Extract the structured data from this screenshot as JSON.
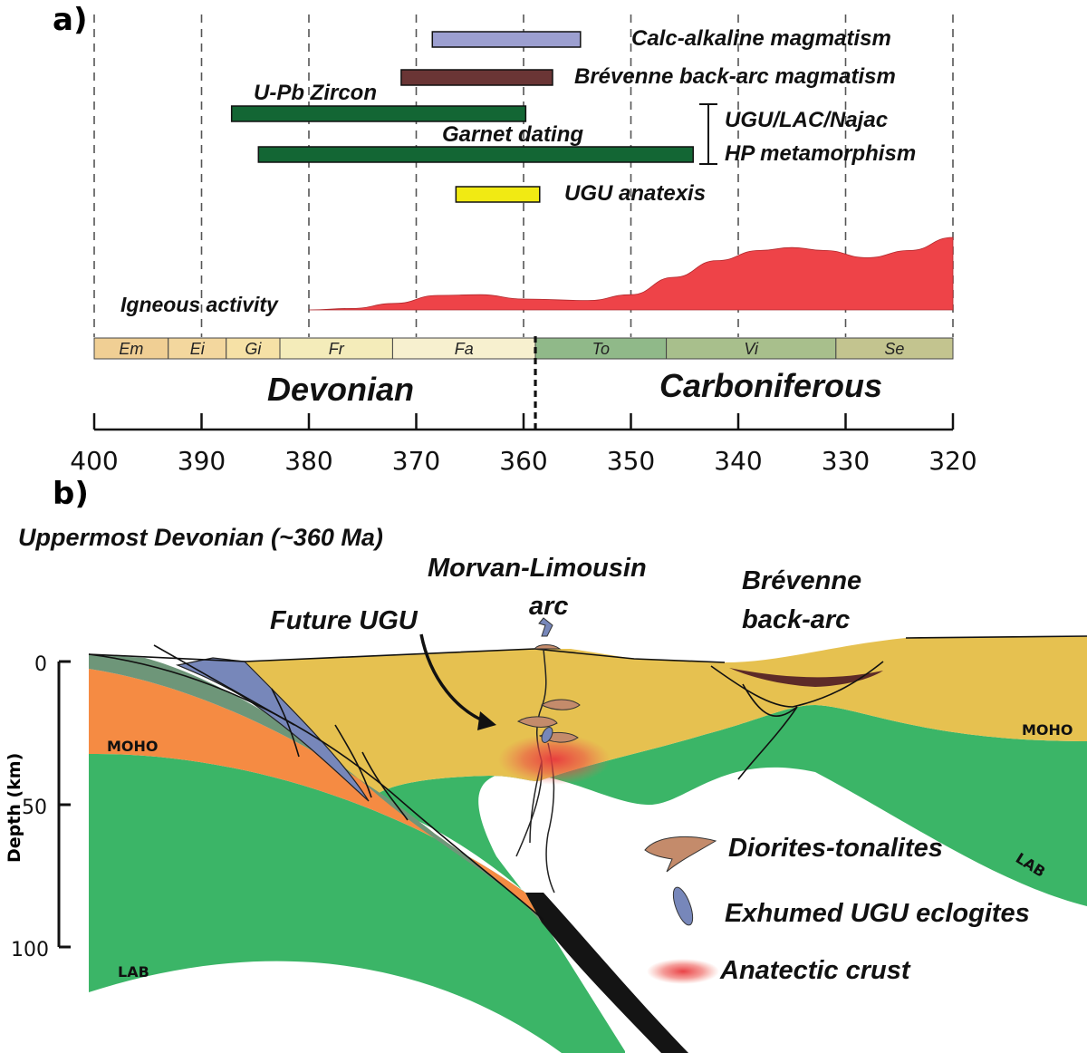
{
  "panel_a": {
    "tag": "a)",
    "ranges": [
      {
        "label": "Calc-alkaline magmatism",
        "start": 368.5,
        "end": 354.7,
        "color": "#9c9fd0"
      },
      {
        "label": "Brévenne back-arc magmatism",
        "start": 371.4,
        "end": 357.3,
        "color": "#6a3535"
      },
      {
        "label": "U-Pb Zircon",
        "start": 387.2,
        "end": 359.8,
        "color": "#136634"
      },
      {
        "label": "Garnet dating",
        "start": 384.7,
        "end": 344.2,
        "color": "#136634"
      },
      {
        "label": "UGU anatexis",
        "start": 366.3,
        "end": 358.5,
        "color": "#f1ea13"
      }
    ],
    "bracket_label_1": "UGU/LAC/Najac",
    "bracket_label_2": "HP metamorphism",
    "igneous_label": "Igneous activity",
    "stages": [
      {
        "name": "Em",
        "start": 400,
        "end": 393.1,
        "color": "#f0cf94"
      },
      {
        "name": "Ei",
        "start": 393.1,
        "end": 387.7,
        "color": "#f3d79e"
      },
      {
        "name": "Gi",
        "start": 387.7,
        "end": 382.7,
        "color": "#f6e1a6"
      },
      {
        "name": "Fr",
        "start": 382.7,
        "end": 372.2,
        "color": "#f4ecba"
      },
      {
        "name": "Fa",
        "start": 372.2,
        "end": 358.9,
        "color": "#f7f0cf"
      },
      {
        "name": "To",
        "start": 358.9,
        "end": 346.7,
        "color": "#90b989"
      },
      {
        "name": "Vi",
        "start": 346.7,
        "end": 330.9,
        "color": "#a8bf8c"
      },
      {
        "name": "Se",
        "start": 330.9,
        "end": 320,
        "color": "#c3c48f"
      }
    ],
    "periods": {
      "devonian": "Devonian",
      "carboniferous": "Carboniferous"
    },
    "boundary_ma": 358.9,
    "axis_ticks": [
      "400",
      "390",
      "380",
      "370",
      "360",
      "350",
      "340",
      "330",
      "320"
    ]
  },
  "chart_data": {
    "type": "area",
    "xlim": [
      400,
      320
    ],
    "x_unit": "Ma",
    "series": [
      {
        "name": "Igneous activity",
        "x": [
          380,
          376,
          372,
          368,
          364,
          360,
          354,
          350,
          346,
          342,
          338,
          335,
          332,
          328,
          324,
          320
        ],
        "y": [
          0,
          0.02,
          0.09,
          0.2,
          0.21,
          0.15,
          0.13,
          0.21,
          0.45,
          0.68,
          0.82,
          0.86,
          0.82,
          0.72,
          0.82,
          1.0
        ]
      }
    ]
  },
  "panel_b": {
    "tag": "b)",
    "title": "Uppermost Devonian (~360 Ma)",
    "labels": {
      "arc_1": "Morvan-Limousin",
      "arc_2": "arc",
      "backarc_1": "Brévenne",
      "backarc_2": "back-arc",
      "future_ugu": "Future UGU",
      "moho_left": "MOHO",
      "moho_right": "MOHO",
      "lab_left": "LAB",
      "lab_right": "LAB"
    },
    "depth_axis": {
      "label": "Depth (km)",
      "ticks": [
        "0",
        "50",
        "100"
      ]
    },
    "legend": [
      {
        "symbol": "diorite",
        "label": "Diorites-tonalites"
      },
      {
        "symbol": "eclogite",
        "label": "Exhumed UGU eclogites"
      },
      {
        "symbol": "anatexis",
        "label": "Anatectic crust"
      }
    ],
    "colors": {
      "crust": "#e6c150",
      "lower_crust": "#f58b43",
      "mantle": "#3bb567",
      "accretion": "#6e9679",
      "eclogite": "#7787ba",
      "slab": "#141414",
      "backarc_basin": "#5d2b28",
      "diorite": "#c48b6b",
      "anatexis": "#e8383d"
    }
  }
}
